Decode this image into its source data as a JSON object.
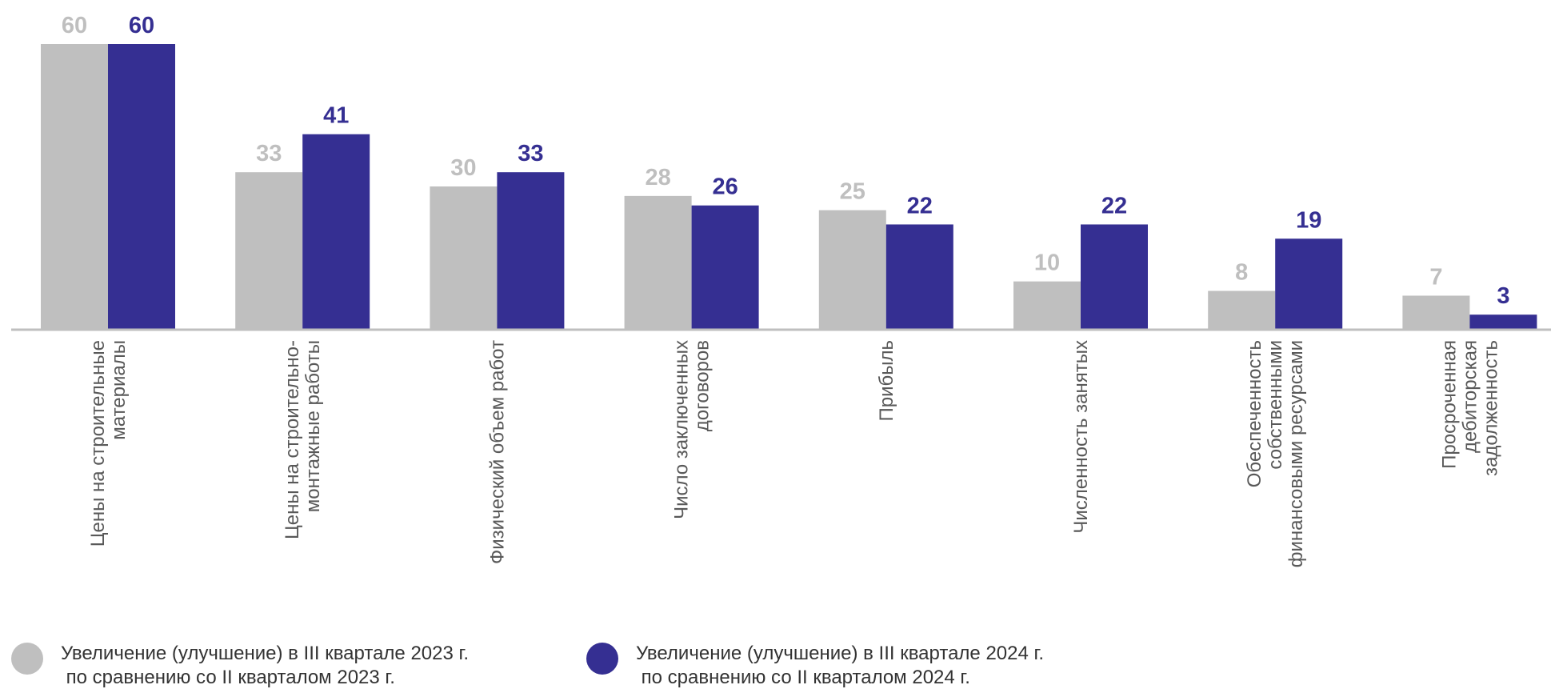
{
  "chart_data": {
    "type": "bar",
    "categories": [
      [
        "Цены на строительные",
        "материалы"
      ],
      [
        "Цены на строительно-",
        "монтажные работы"
      ],
      [
        "Физический объем работ"
      ],
      [
        "Число заключенных",
        "договоров"
      ],
      [
        "Прибыль"
      ],
      [
        "Численность занятых"
      ],
      [
        "Обеспеченность",
        "собственными",
        "финансовыми ресурсами"
      ],
      [
        "Просроченная",
        "дебиторская",
        "задолженность"
      ]
    ],
    "series": [
      {
        "name": "Увеличение (улучшение) в III квартале 2023 г. по сравнению со II кварталом 2023 г.",
        "color": "#bfbfbf",
        "values": [
          60,
          33,
          30,
          28,
          25,
          10,
          8,
          7
        ],
        "labels": [
          "60",
          "33",
          "30",
          "28",
          "25",
          "10",
          "8",
          "7"
        ]
      },
      {
        "name": "Увеличение (улучшение) в III квартале 2024 г. по сравнению со II кварталом 2024 г.",
        "color": "#352f92",
        "values": [
          60,
          41,
          33,
          26,
          22,
          22,
          19,
          3
        ],
        "labels": [
          "60",
          "41",
          "33",
          "26",
          "22",
          "22",
          "19",
          "3"
        ]
      }
    ],
    "ylim": [
      0,
      60
    ],
    "grid": false,
    "legend_position": "bottom"
  },
  "legend": {
    "item1": "Увеличение (улучшение) в III квартале 2023 г.\n по сравнению со II кварталом 2023 г.",
    "item2": "Увеличение (улучшение) в III квартале 2024 г.\n по сравнению со II кварталом 2024 г."
  },
  "colors": {
    "series1": "#bfbfbf",
    "series2": "#352f92",
    "axis": "#bfbfbf",
    "category_text": "#595959"
  }
}
